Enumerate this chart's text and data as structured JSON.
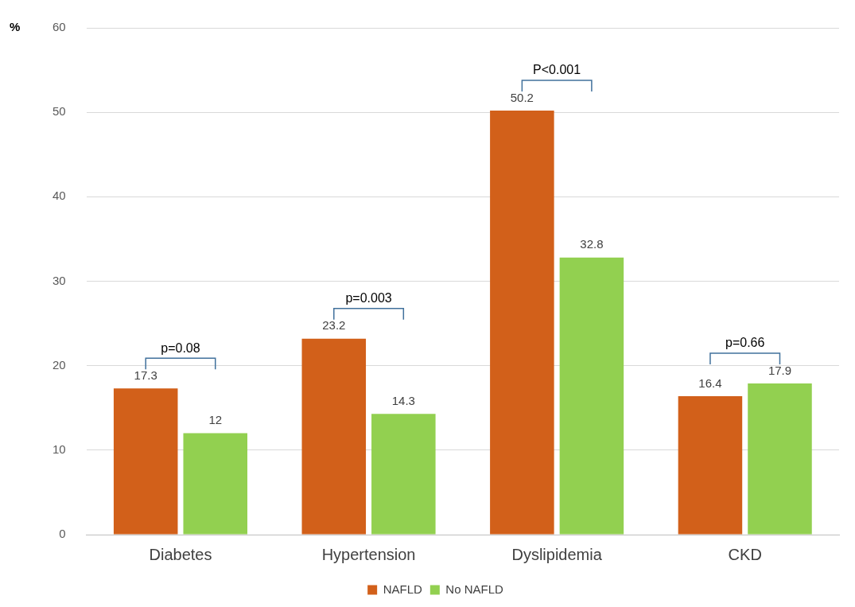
{
  "chart_data": {
    "type": "bar",
    "ylabel": "%",
    "categories": [
      "Diabetes",
      "Hypertension",
      "Dyslipidemia",
      "CKD"
    ],
    "series": [
      {
        "name": "NAFLD",
        "color": "#d2601a",
        "values": [
          17.3,
          23.2,
          50.2,
          16.4
        ]
      },
      {
        "name": "No NAFLD",
        "color": "#92d050",
        "values": [
          12,
          14.3,
          32.8,
          17.9
        ]
      }
    ],
    "ylim": [
      0,
      60
    ],
    "yticks": [
      0,
      10,
      20,
      30,
      40,
      50,
      60
    ],
    "grid": "y",
    "legend": "bottom",
    "data_labels": true,
    "annotations": [
      "p=0.08",
      "p=0.003",
      "P<0.001",
      "p=0.66"
    ]
  }
}
